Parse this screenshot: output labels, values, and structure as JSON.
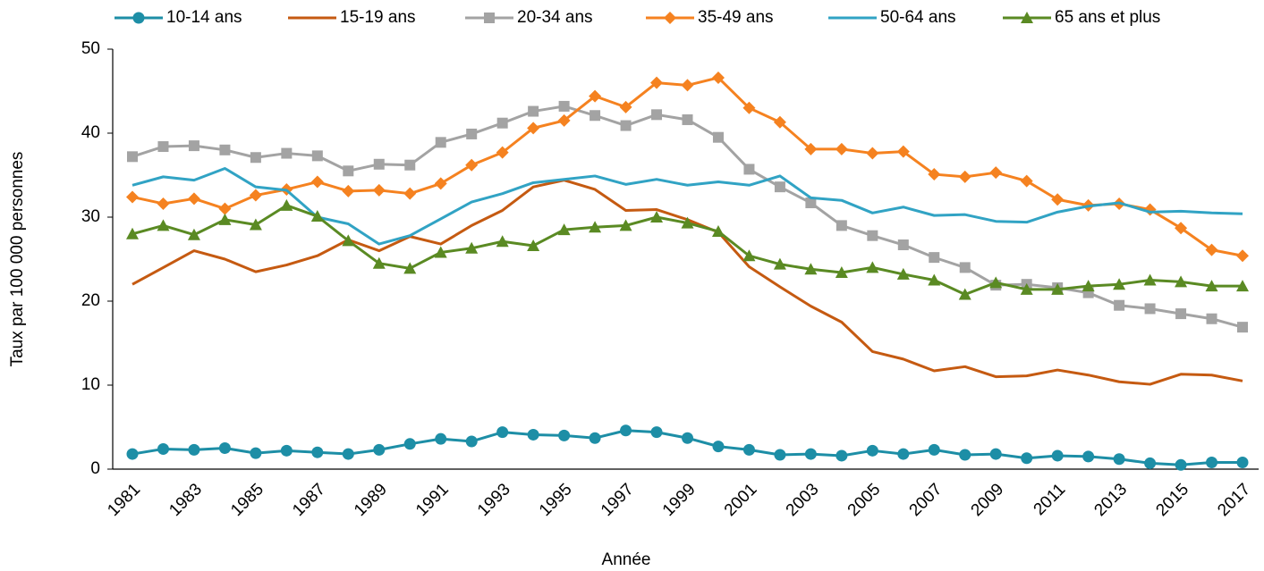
{
  "chart_data": {
    "type": "line",
    "x_label": "Année",
    "y_label": "Taux par 100 000 personnes",
    "categories": [
      "1981",
      null,
      "1983",
      null,
      "1985",
      null,
      "1987",
      null,
      "1989",
      null,
      "1991",
      null,
      "1993",
      null,
      "1995",
      null,
      "1997",
      null,
      "1999",
      null,
      "2001",
      null,
      "2003",
      null,
      "2005",
      null,
      "2007",
      null,
      "2009",
      null,
      "2011",
      null,
      "2013",
      null,
      "2015",
      null,
      "2017"
    ],
    "ylim": [
      0,
      50
    ],
    "yticks": [
      0,
      10,
      20,
      30,
      40,
      50
    ],
    "grid": false,
    "legend": "top",
    "series": [
      {
        "name": "10-14 ans",
        "color": "#1d8ea6",
        "marker": "circle",
        "values": [
          1.8,
          2.4,
          2.3,
          2.5,
          1.9,
          2.2,
          2.0,
          1.8,
          2.3,
          3.0,
          3.6,
          3.3,
          4.4,
          4.1,
          4.0,
          3.7,
          4.6,
          4.4,
          3.7,
          2.7,
          2.3,
          1.7,
          1.8,
          1.6,
          2.2,
          1.8,
          2.3,
          1.7,
          1.8,
          1.3,
          1.6,
          1.5,
          1.2,
          0.7,
          0.5,
          0.8,
          0.8
        ]
      },
      {
        "name": "15-19 ans",
        "color": "#c55a11",
        "marker": "none",
        "values": [
          22.0,
          24.0,
          26.0,
          25.0,
          23.5,
          24.3,
          25.4,
          27.3,
          26.0,
          27.7,
          26.8,
          29.0,
          30.8,
          33.6,
          34.4,
          33.3,
          30.8,
          30.9,
          29.7,
          28.2,
          24.1,
          21.7,
          19.4,
          17.5,
          14.0,
          13.1,
          11.7,
          12.2,
          11.0,
          11.1,
          11.8,
          11.2,
          10.4,
          10.1,
          11.3,
          11.2,
          10.5
        ]
      },
      {
        "name": "20-34 ans",
        "color": "#a3a3a3",
        "marker": "square",
        "values": [
          37.2,
          38.4,
          38.5,
          38.0,
          37.1,
          37.6,
          37.3,
          35.5,
          36.3,
          36.2,
          38.9,
          39.9,
          41.2,
          42.6,
          43.2,
          42.1,
          40.9,
          42.2,
          41.6,
          39.5,
          35.7,
          33.6,
          31.7,
          29.0,
          27.8,
          26.7,
          25.2,
          24.0,
          21.9,
          22.0,
          21.6,
          21.0,
          19.5,
          19.1,
          18.5,
          17.9,
          16.9
        ]
      },
      {
        "name": "35-49 ans",
        "color": "#f58220",
        "marker": "diamond",
        "values": [
          32.4,
          31.6,
          32.2,
          31.0,
          32.6,
          33.3,
          34.2,
          33.1,
          33.2,
          32.8,
          34.0,
          36.2,
          37.7,
          40.6,
          41.5,
          44.4,
          43.1,
          46.0,
          45.7,
          46.6,
          43.0,
          41.3,
          38.1,
          38.1,
          37.6,
          37.8,
          35.1,
          34.8,
          35.3,
          34.3,
          32.1,
          31.4,
          31.6,
          30.9,
          28.7,
          26.1,
          25.4
        ]
      },
      {
        "name": "50-64 ans",
        "color": "#31a3c4",
        "marker": "none",
        "values": [
          33.8,
          34.8,
          34.4,
          35.8,
          33.6,
          33.2,
          30.0,
          29.2,
          26.8,
          27.8,
          29.8,
          31.8,
          32.8,
          34.1,
          34.5,
          34.9,
          33.9,
          34.5,
          33.8,
          34.2,
          33.8,
          34.9,
          32.3,
          32.0,
          30.5,
          31.2,
          30.2,
          30.3,
          29.5,
          29.4,
          30.6,
          31.3,
          31.7,
          30.6,
          30.7,
          30.5,
          30.4
        ]
      },
      {
        "name": "65 ans et plus",
        "color": "#5a8a23",
        "marker": "triangle",
        "values": [
          28.0,
          29.0,
          27.9,
          29.7,
          29.1,
          31.4,
          30.1,
          27.2,
          24.5,
          23.9,
          25.8,
          26.3,
          27.1,
          26.6,
          28.5,
          28.8,
          29.0,
          30.0,
          29.3,
          28.3,
          25.4,
          24.4,
          23.8,
          23.4,
          24.0,
          23.2,
          22.5,
          20.8,
          22.2,
          21.4,
          21.4,
          21.8,
          22.0,
          22.5,
          22.3,
          21.8,
          21.8
        ]
      }
    ]
  }
}
